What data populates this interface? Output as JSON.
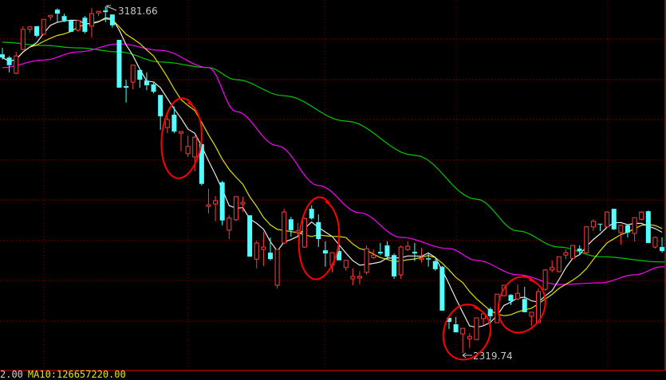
{
  "chart_data": {
    "type": "candlestick",
    "title": "",
    "xlabel": "",
    "ylabel": "",
    "ylim": [
      2300,
      3197
    ],
    "grid": true,
    "colors": {
      "up": "#ff3c3c",
      "down": "#54ffff",
      "ma5": "#e8e8e8",
      "ma10": "#e0e000",
      "ma20": "#ff00ff",
      "ma60": "#00c800",
      "grid": "#8b0000",
      "annotation": "#ff0000"
    },
    "ohlc": [
      [
        3062,
        3078,
        3049,
        3054
      ],
      [
        3054,
        3058,
        3017,
        3035
      ],
      [
        3015,
        3068,
        3013,
        3058
      ],
      [
        3074,
        3132,
        3072,
        3124
      ],
      [
        3124,
        3132,
        3116,
        3130
      ],
      [
        3132,
        3132,
        3104,
        3108
      ],
      [
        3112,
        3149,
        3110,
        3149
      ],
      [
        3155,
        3159,
        3146,
        3159
      ],
      [
        3173,
        3176,
        3140,
        3163
      ],
      [
        3157,
        3163,
        3142,
        3146
      ],
      [
        3146,
        3148,
        3118,
        3118
      ],
      [
        3122,
        3148,
        3118,
        3146
      ],
      [
        3153,
        3157,
        3114,
        3118
      ],
      [
        3132,
        3177,
        3104,
        3163
      ],
      [
        3165,
        3169,
        3157,
        3169
      ],
      [
        3171,
        3181.66,
        3142,
        3167
      ],
      [
        3161,
        3161,
        3128,
        3134
      ],
      [
        3098,
        3098,
        2979,
        2979
      ],
      [
        2983,
        2999,
        2942,
        2979
      ],
      [
        2993,
        3035,
        2975,
        3035
      ],
      [
        3023,
        3023,
        2979,
        2999
      ],
      [
        2997,
        3017,
        2973,
        2985
      ],
      [
        2987,
        2991,
        2965,
        2969
      ],
      [
        2961,
        2961,
        2874,
        2908
      ],
      [
        2880,
        2914,
        2866,
        2900
      ],
      [
        2912,
        2932,
        2866,
        2870
      ],
      [
        2866,
        2870,
        2821,
        2870
      ],
      [
        2815,
        2860,
        2807,
        2833
      ],
      [
        2807,
        2860,
        2771,
        2856
      ],
      [
        2839,
        2839,
        2736,
        2740
      ],
      [
        2684,
        2728,
        2666,
        2688
      ],
      [
        2690,
        2710,
        2647,
        2698
      ],
      [
        2744,
        2748,
        2637,
        2649
      ],
      [
        2625,
        2662,
        2603,
        2655
      ],
      [
        2651,
        2710,
        2647,
        2708
      ],
      [
        2690,
        2708,
        2670,
        2694
      ],
      [
        2662,
        2662,
        2559,
        2559
      ],
      [
        2553,
        2599,
        2530,
        2593
      ],
      [
        2577,
        2621,
        2536,
        2583
      ],
      [
        2569,
        2607,
        2550,
        2553
      ],
      [
        2488,
        2577,
        2480,
        2577
      ],
      [
        2593,
        2678,
        2591,
        2670
      ],
      [
        2652,
        2658,
        2609,
        2625
      ],
      [
        2619,
        2643,
        2611,
        2623
      ],
      [
        2583,
        2656,
        2581,
        2654
      ],
      [
        2678,
        2686,
        2651,
        2654
      ],
      [
        2645,
        2664,
        2583,
        2603
      ],
      [
        2575,
        2597,
        2534,
        2567
      ],
      [
        2538,
        2569,
        2520,
        2569
      ],
      [
        2573,
        2593,
        2550,
        2550
      ],
      [
        2532,
        2550,
        2524,
        2550
      ],
      [
        2504,
        2530,
        2488,
        2510
      ],
      [
        2506,
        2524,
        2490,
        2510
      ],
      [
        2520,
        2587,
        2514,
        2579
      ],
      [
        2557,
        2577,
        2553,
        2563
      ],
      [
        2571,
        2593,
        2563,
        2567
      ],
      [
        2587,
        2597,
        2553,
        2559
      ],
      [
        2563,
        2567,
        2504,
        2510
      ],
      [
        2514,
        2587,
        2504,
        2583
      ],
      [
        2577,
        2597,
        2573,
        2585
      ],
      [
        2571,
        2593,
        2548,
        2567
      ],
      [
        2552,
        2581,
        2544,
        2555
      ],
      [
        2555,
        2567,
        2534,
        2552
      ],
      [
        2548,
        2553,
        2524,
        2528
      ],
      [
        2534,
        2536,
        2425,
        2425
      ],
      [
        2407,
        2407,
        2379,
        2397
      ],
      [
        2391,
        2409,
        2371,
        2371
      ],
      [
        2367,
        2381,
        2319.74,
        2381
      ],
      [
        2355,
        2369,
        2332,
        2361
      ],
      [
        2353,
        2407,
        2353,
        2407
      ],
      [
        2405,
        2421,
        2389,
        2417
      ],
      [
        2429,
        2433,
        2399,
        2411
      ],
      [
        2395,
        2466,
        2395,
        2466
      ],
      [
        2462,
        2488,
        2460,
        2488
      ],
      [
        2464,
        2466,
        2439,
        2449
      ],
      [
        2454,
        2490,
        2450,
        2468
      ],
      [
        2454,
        2484,
        2421,
        2421
      ],
      [
        2411,
        2421,
        2387,
        2421
      ],
      [
        2395,
        2480,
        2395,
        2472
      ],
      [
        2478,
        2528,
        2474,
        2526
      ],
      [
        2526,
        2550,
        2520,
        2532
      ],
      [
        2522,
        2559,
        2520,
        2559
      ],
      [
        2563,
        2577,
        2553,
        2569
      ],
      [
        2555,
        2587,
        2553,
        2587
      ],
      [
        2579,
        2587,
        2563,
        2573
      ],
      [
        2569,
        2635,
        2567,
        2633
      ],
      [
        2633,
        2652,
        2623,
        2647
      ],
      [
        2641,
        2641,
        2623,
        2639
      ],
      [
        2633,
        2672,
        2633,
        2670
      ],
      [
        2678,
        2678,
        2625,
        2627
      ],
      [
        2619,
        2637,
        2589,
        2637
      ],
      [
        2637,
        2639,
        2607,
        2619
      ],
      [
        2617,
        2656,
        2597,
        2656
      ],
      [
        2652,
        2672,
        2649,
        2670
      ],
      [
        2672,
        2674,
        2593,
        2593
      ],
      [
        2583,
        2609,
        2579,
        2607
      ],
      [
        2583,
        2607,
        2569,
        2573
      ]
    ],
    "ma20_samples": [
      [
        0,
        3029
      ],
      [
        6,
        3048
      ],
      [
        11,
        3068
      ],
      [
        17,
        3088
      ],
      [
        23,
        3072
      ],
      [
        30,
        3029
      ],
      [
        34,
        2920
      ],
      [
        40,
        2835
      ],
      [
        46,
        2736
      ],
      [
        52,
        2668
      ],
      [
        58,
        2607
      ],
      [
        65,
        2579
      ],
      [
        69,
        2550
      ],
      [
        75,
        2514
      ],
      [
        81,
        2490
      ],
      [
        87,
        2494
      ],
      [
        92,
        2514
      ],
      [
        96,
        2534
      ]
    ],
    "ma60_samples": [
      [
        0,
        3092
      ],
      [
        6,
        3084
      ],
      [
        11,
        3078
      ],
      [
        17,
        3068
      ],
      [
        23,
        3043
      ],
      [
        30,
        3029
      ],
      [
        34,
        2999
      ],
      [
        41,
        2959
      ],
      [
        50,
        2896
      ],
      [
        60,
        2811
      ],
      [
        69,
        2702
      ],
      [
        75,
        2623
      ],
      [
        81,
        2583
      ],
      [
        87,
        2559
      ],
      [
        96,
        2546
      ]
    ],
    "annotations": {
      "high_label": "3181.66",
      "high_index": 15,
      "low_label": "2319.74",
      "low_index": 67,
      "circled_indices": [
        [
          24,
          28
        ],
        [
          44,
          48
        ],
        [
          65,
          70
        ],
        [
          73,
          78
        ]
      ]
    }
  },
  "footer": {
    "value": "2.00",
    "ma10": "MA10:126657220.00"
  }
}
